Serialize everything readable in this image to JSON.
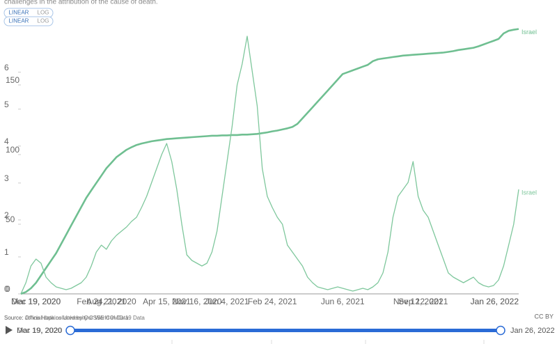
{
  "header": {
    "note": "challenges in the attribution of the cause of death."
  },
  "controls": [
    {
      "linear": "LINEAR",
      "log": "LOG"
    },
    {
      "linear": "LINEAR",
      "log": "LOG"
    }
  ],
  "chart_data": [
    {
      "type": "line",
      "categories": [
        null,
        null,
        null,
        "Mar 19, 2020",
        null,
        null,
        null,
        null,
        null,
        null,
        null,
        null,
        null,
        null,
        null,
        null,
        null,
        null,
        "Aug 21, 2020",
        null,
        null,
        null,
        null,
        null,
        null,
        null,
        null,
        null,
        null,
        null,
        null,
        null,
        null,
        null,
        null,
        "Nov 16, 2020",
        null,
        null,
        null,
        null,
        null,
        "Jun 4, 2021",
        null,
        null,
        null,
        null,
        null,
        null,
        null,
        null,
        null,
        null,
        null,
        null,
        null,
        null,
        null,
        null,
        null,
        null,
        null,
        null,
        null,
        null,
        null,
        null,
        null,
        null,
        null,
        null,
        null,
        null,
        null,
        null,
        null,
        null,
        null,
        null,
        null,
        "Nov 12, 2021",
        null,
        null,
        null,
        null,
        null,
        null,
        null,
        null,
        null,
        null,
        null,
        null,
        null,
        null,
        null,
        null,
        null,
        null,
        null,
        "Jan 26, 2022"
      ],
      "series": [
        {
          "name": "Israel",
          "color": "#6fbf91",
          "width": 2.6,
          "values": [
            0,
            0.05,
            0.15,
            0.3,
            0.5,
            0.7,
            0.9,
            1.1,
            1.35,
            1.6,
            1.85,
            2.1,
            2.35,
            2.6,
            2.8,
            3.0,
            3.2,
            3.4,
            3.55,
            3.7,
            3.8,
            3.9,
            3.97,
            4.03,
            4.07,
            4.1,
            4.13,
            4.15,
            4.17,
            4.19,
            4.2,
            4.21,
            4.22,
            4.23,
            4.24,
            4.25,
            4.26,
            4.27,
            4.28,
            4.28,
            4.29,
            4.29,
            4.3,
            4.3,
            4.31,
            4.31,
            4.32,
            4.33,
            4.35,
            4.37,
            4.4,
            4.42,
            4.45,
            4.48,
            4.52,
            4.6,
            4.75,
            4.9,
            5.05,
            5.2,
            5.35,
            5.5,
            5.65,
            5.8,
            5.95,
            6.0,
            6.05,
            6.1,
            6.15,
            6.2,
            6.3,
            6.35,
            6.37,
            6.39,
            6.41,
            6.43,
            6.45,
            6.46,
            6.47,
            6.48,
            6.49,
            6.5,
            6.51,
            6.52,
            6.53,
            6.55,
            6.57,
            6.6,
            6.62,
            6.64,
            6.66,
            6.7,
            6.75,
            6.8,
            6.85,
            6.9,
            7.05,
            7.12,
            7.15,
            7.17
          ]
        }
      ],
      "ylim": [
        0,
        7.2
      ],
      "yticks": [
        0,
        1,
        2,
        3,
        4,
        5,
        6
      ]
    },
    {
      "type": "line",
      "categories": [
        null,
        null,
        null,
        "Dec 19, 2020",
        null,
        null,
        null,
        null,
        null,
        null,
        null,
        null,
        null,
        null,
        null,
        null,
        "Feb 24, 2021",
        null,
        null,
        null,
        null,
        null,
        null,
        null,
        null,
        null,
        null,
        null,
        null,
        "Apr 15, 2021",
        null,
        null,
        null,
        null,
        null,
        null,
        null,
        null,
        null,
        null,
        null,
        null,
        null,
        null,
        null,
        null,
        null,
        null,
        null,
        null,
        "Feb 24, 2021",
        null,
        null,
        null,
        null,
        null,
        null,
        null,
        null,
        null,
        null,
        null,
        null,
        null,
        "Jun 6, 2021",
        null,
        null,
        null,
        null,
        null,
        null,
        null,
        null,
        null,
        null,
        null,
        null,
        null,
        null,
        null,
        "Sep 12, 2021",
        null,
        null,
        null,
        null,
        null,
        null,
        null,
        null,
        null,
        null,
        null,
        null,
        null,
        null,
        null,
        null,
        null,
        null,
        "Jan 26, 2022"
      ],
      "series": [
        {
          "name": "Israel",
          "color": "#7ec79c",
          "width": 1.3,
          "values": [
            0,
            8,
            20,
            25,
            22,
            12,
            8,
            5,
            4,
            3,
            4,
            6,
            8,
            12,
            20,
            30,
            35,
            32,
            38,
            42,
            45,
            48,
            52,
            55,
            62,
            70,
            80,
            90,
            100,
            108,
            95,
            75,
            50,
            28,
            24,
            22,
            20,
            22,
            30,
            45,
            70,
            95,
            120,
            150,
            165,
            185,
            160,
            135,
            90,
            70,
            62,
            55,
            50,
            35,
            30,
            25,
            20,
            12,
            8,
            5,
            4,
            3,
            4,
            5,
            4,
            3,
            2,
            3,
            4,
            3,
            5,
            8,
            15,
            30,
            55,
            70,
            75,
            80,
            95,
            70,
            60,
            55,
            45,
            35,
            25,
            15,
            12,
            10,
            8,
            10,
            12,
            8,
            6,
            5,
            6,
            10,
            20,
            35,
            50,
            75
          ]
        }
      ],
      "ylim": [
        0,
        191
      ],
      "yticks": [
        0,
        50,
        100,
        150
      ]
    }
  ],
  "footer": {
    "sources": [
      "Source: Johns Hopkins University CSSE COVID-19 Data",
      "Source: Official data collated by Our World in Data"
    ],
    "license": "CC BY"
  },
  "timeline": {
    "start": "Mar 19, 2020",
    "start_alt": "Dec 19, 2020",
    "end": "Jan 26, 2022"
  }
}
